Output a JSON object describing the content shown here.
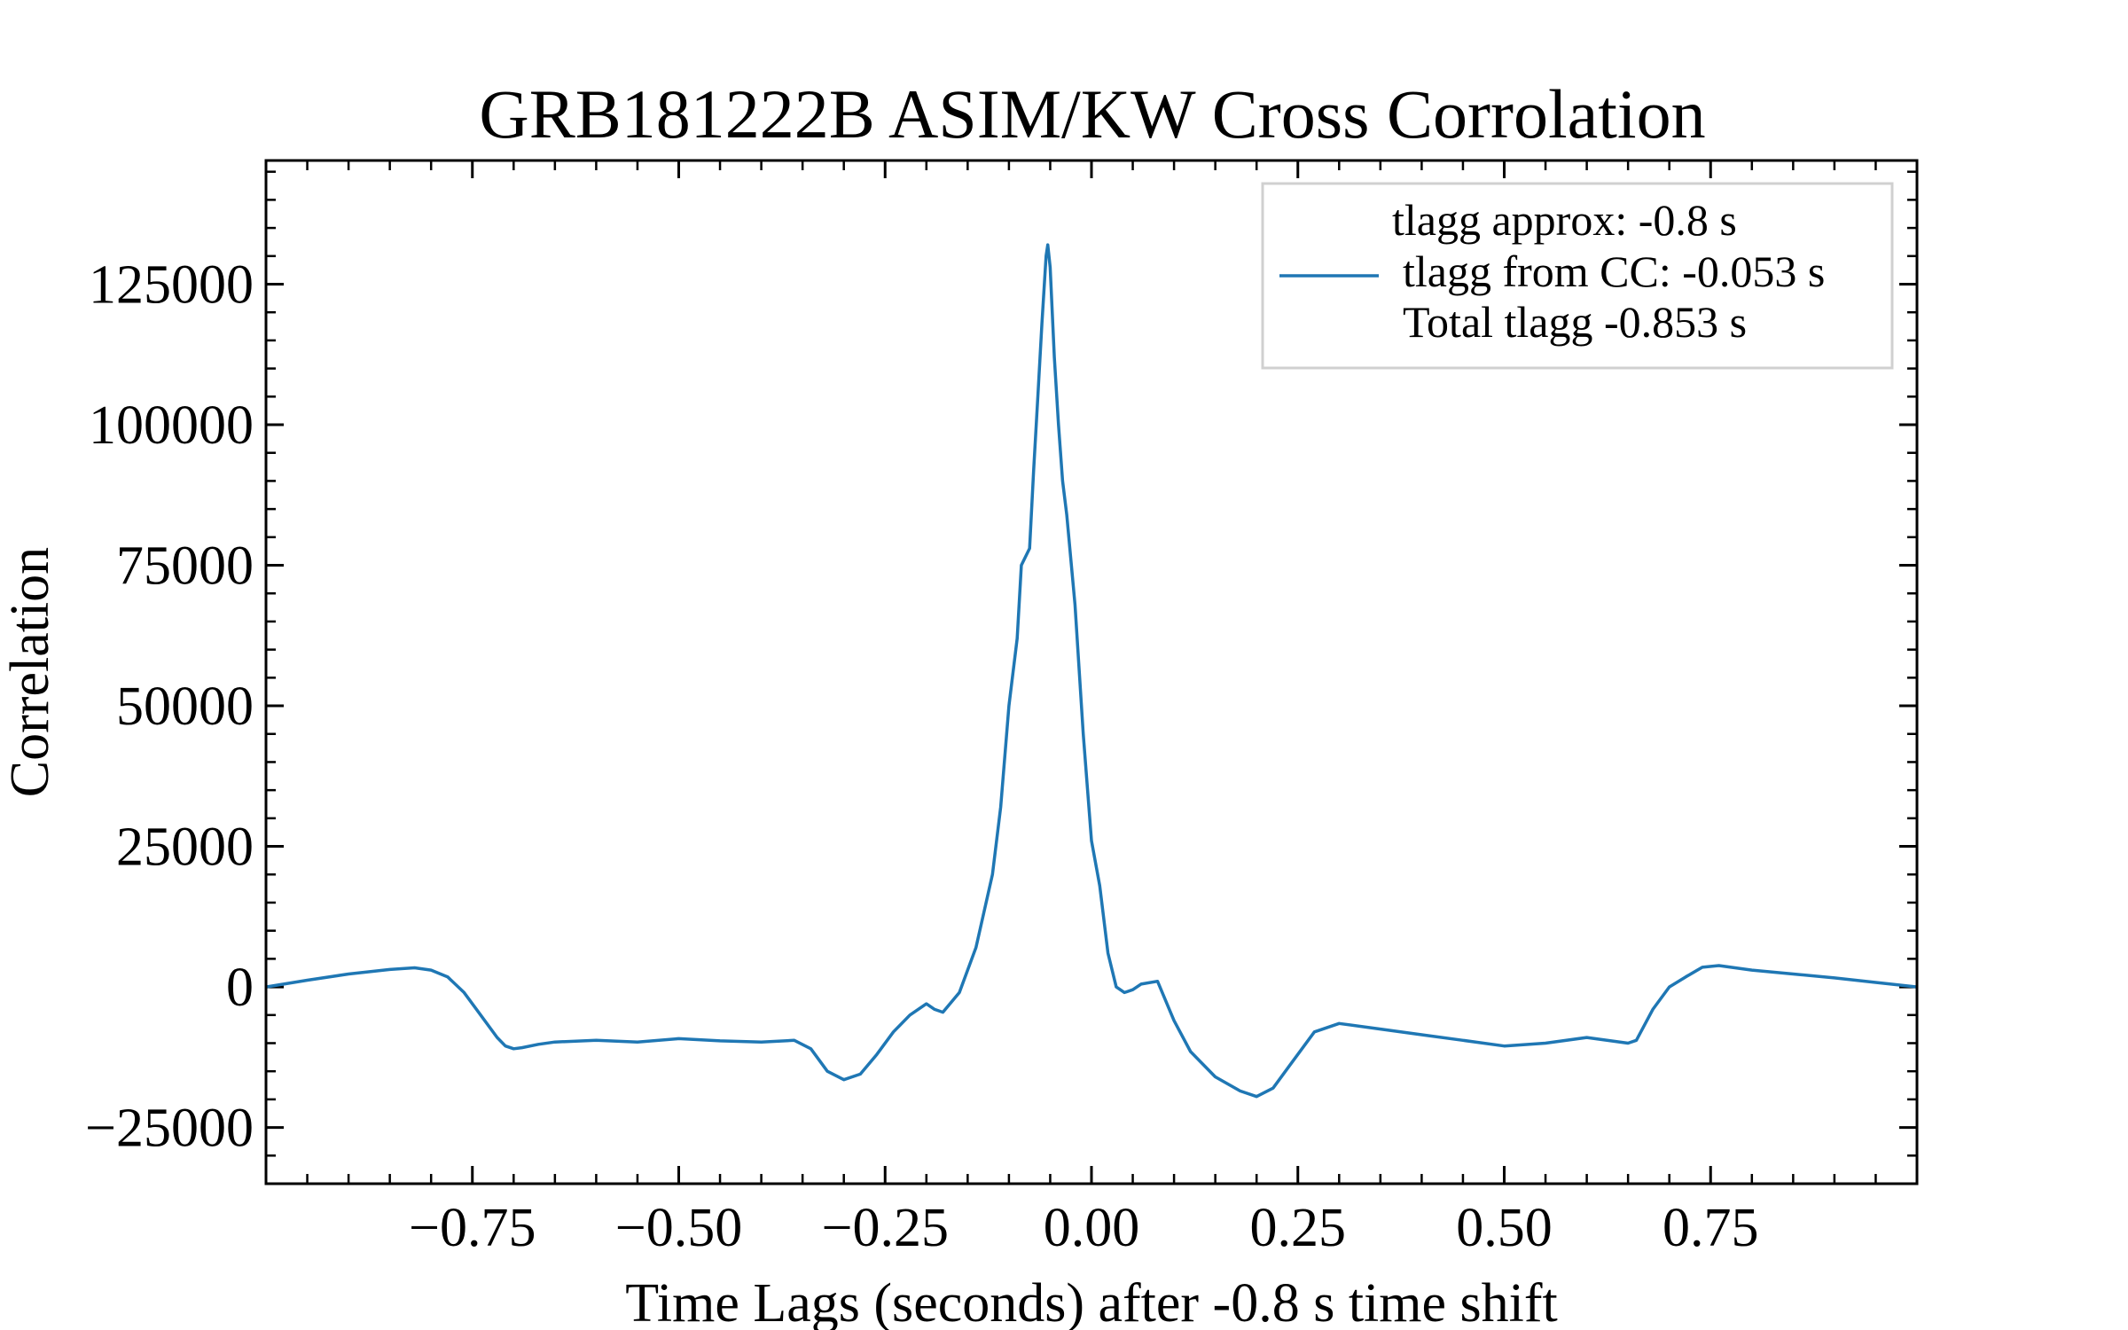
{
  "chart_data": {
    "type": "line",
    "title": "GRB181222B ASIM/KW Cross Corrolation",
    "xlabel": "Time Lags (seconds) after -0.8 s time shift",
    "ylabel": "Correlation",
    "xlim": [
      -1.0,
      1.0
    ],
    "ylim": [
      -35000,
      147000
    ],
    "xticks": [
      -0.75,
      -0.5,
      -0.25,
      0.0,
      0.25,
      0.5,
      0.75
    ],
    "xtick_labels": [
      "−0.75",
      "−0.50",
      "−0.25",
      "0.00",
      "0.25",
      "0.50",
      "0.75"
    ],
    "yticks": [
      -25000,
      0,
      25000,
      50000,
      75000,
      100000,
      125000
    ],
    "ytick_labels": [
      "−25000",
      "0",
      "25000",
      "50000",
      "75000",
      "100000",
      "125000"
    ],
    "grid": false,
    "legend_position": "top-right",
    "legend_lines": [
      "tlagg approx: -0.8 s",
      "tlagg from CC: -0.053 s",
      "Total tlagg -0.853 s"
    ],
    "series": [
      {
        "color": "#1f77b4",
        "x": [
          -1.0,
          -0.95,
          -0.9,
          -0.85,
          -0.82,
          -0.8,
          -0.78,
          -0.76,
          -0.74,
          -0.72,
          -0.71,
          -0.7,
          -0.69,
          -0.67,
          -0.65,
          -0.6,
          -0.55,
          -0.5,
          -0.45,
          -0.4,
          -0.36,
          -0.34,
          -0.32,
          -0.3,
          -0.28,
          -0.26,
          -0.24,
          -0.22,
          -0.2,
          -0.19,
          -0.18,
          -0.16,
          -0.14,
          -0.12,
          -0.11,
          -0.1,
          -0.09,
          -0.085,
          -0.075,
          -0.07,
          -0.065,
          -0.06,
          -0.055,
          -0.053,
          -0.05,
          -0.045,
          -0.04,
          -0.035,
          -0.03,
          -0.02,
          -0.01,
          0.0,
          0.01,
          0.02,
          0.03,
          0.04,
          0.05,
          0.06,
          0.08,
          0.1,
          0.12,
          0.15,
          0.18,
          0.2,
          0.22,
          0.24,
          0.27,
          0.3,
          0.35,
          0.4,
          0.45,
          0.5,
          0.55,
          0.6,
          0.65,
          0.66,
          0.68,
          0.7,
          0.72,
          0.74,
          0.76,
          0.8,
          0.85,
          0.9,
          0.95,
          1.0
        ],
        "y": [
          0,
          1200,
          2300,
          3100,
          3400,
          3000,
          1800,
          -1000,
          -5000,
          -9000,
          -10500,
          -11000,
          -10800,
          -10200,
          -9800,
          -9500,
          -9800,
          -9200,
          -9600,
          -9800,
          -9500,
          -11000,
          -15000,
          -16500,
          -15500,
          -12000,
          -8000,
          -5000,
          -3000,
          -4000,
          -4500,
          -1000,
          7000,
          20000,
          32000,
          50000,
          62000,
          75000,
          78000,
          92000,
          105000,
          118000,
          130000,
          132000,
          128000,
          112000,
          100000,
          90000,
          84000,
          68000,
          45000,
          26000,
          18000,
          6000,
          0,
          -1000,
          -500,
          500,
          1000,
          -6000,
          -11500,
          -16000,
          -18500,
          -19500,
          -18000,
          -14000,
          -8000,
          -6500,
          -7500,
          -8500,
          -9500,
          -10500,
          -10000,
          -9000,
          -10000,
          -9500,
          -4000,
          0,
          1800,
          3500,
          3800,
          3000,
          2300,
          1600,
          800,
          0
        ]
      }
    ]
  }
}
